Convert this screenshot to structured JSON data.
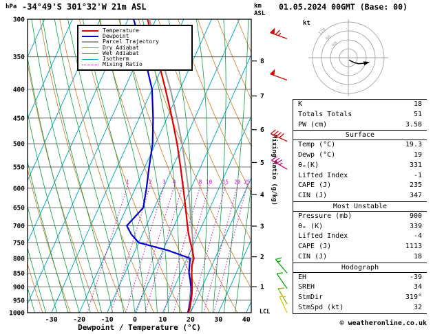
{
  "header": {
    "pressure_unit": "hPa",
    "title": "-34°49'S 301°32'W 21m ASL",
    "datetime": "01.05.2024 00GMT (Base: 00)"
  },
  "axis_labels": {
    "x": "Dewpoint / Temperature (°C)",
    "km_top": "km",
    "km_bottom": "ASL",
    "mixing_ratio": "Mixing Ratio (g/kg)",
    "lcl": "LCL",
    "hodograph_unit": "kt"
  },
  "legend": [
    {
      "label": "Temperature",
      "color": "#dd0000",
      "width": 2,
      "style": "solid"
    },
    {
      "label": "Dewpoint",
      "color": "#0000cc",
      "width": 2,
      "style": "solid"
    },
    {
      "label": "Parcel Trajectory",
      "color": "#999999",
      "width": 2,
      "style": "solid"
    },
    {
      "label": "Dry Adiabat",
      "color": "#d07820",
      "width": 1,
      "style": "solid"
    },
    {
      "label": "Wet Adiabat",
      "color": "#00a040",
      "width": 1,
      "style": "solid"
    },
    {
      "label": "Isotherm",
      "color": "#00b0c8",
      "width": 1,
      "style": "solid"
    },
    {
      "label": "Mixing Ratio",
      "color": "#cc00cc",
      "width": 1,
      "style": "dotted"
    }
  ],
  "chart_data": {
    "type": "skewt_log_p_sounding",
    "x_range_c": [
      -30,
      40
    ],
    "x_ticks_c": [
      -30,
      -20,
      -10,
      0,
      10,
      20,
      30,
      40
    ],
    "pressure_range_hpa": [
      300,
      1000
    ],
    "pressure_ticks_hpa": [
      300,
      350,
      400,
      450,
      500,
      550,
      600,
      650,
      700,
      750,
      800,
      850,
      900,
      950,
      1000
    ],
    "km_ticks": [
      {
        "km": 1,
        "p": 899
      },
      {
        "km": 2,
        "p": 795
      },
      {
        "km": 3,
        "p": 701
      },
      {
        "km": 4,
        "p": 616
      },
      {
        "km": 5,
        "p": 540
      },
      {
        "km": 6,
        "p": 472
      },
      {
        "km": 7,
        "p": 411
      },
      {
        "km": 8,
        "p": 356
      }
    ],
    "lcl_pressure_hpa": 995,
    "isotherm_step_c": 10,
    "dry_adiabat_step_k": 10,
    "wet_adiabat_step_c": 4,
    "mixing_ratio_lines_g_kg": [
      1,
      2,
      3,
      4,
      5,
      8,
      10,
      15,
      20,
      25
    ],
    "levels_hpa": [
      1000,
      975,
      950,
      925,
      900,
      875,
      850,
      825,
      800,
      775,
      750,
      725,
      700,
      650,
      600,
      550,
      500,
      450,
      400,
      350,
      300
    ],
    "temperature_c": [
      19.3,
      18.8,
      18.2,
      17.4,
      16.4,
      15.2,
      14.0,
      12.8,
      12.4,
      10.6,
      8.6,
      6.6,
      4.8,
      1.2,
      -2.8,
      -7.2,
      -12.2,
      -18.2,
      -25.2,
      -33.4,
      -43.0
    ],
    "dewpoint_c": [
      19.0,
      18.6,
      18.0,
      17.2,
      16.0,
      14.6,
      13.0,
      12.0,
      11.0,
      2.0,
      -10.0,
      -14.0,
      -17.0,
      -14.0,
      -16.0,
      -18.5,
      -21.0,
      -25.0,
      -30.0,
      -38.0,
      -48.0
    ],
    "parcel_c": [
      19.3,
      18.4,
      17.6,
      16.8,
      16.0,
      15.0,
      14.0,
      13.0,
      12.0,
      10.8,
      9.5,
      7.9,
      6.2,
      2.8,
      -1.0,
      -5.4,
      -10.4,
      -16.4,
      -23.4,
      -32.0,
      -42.4
    ],
    "wind_barbs": [
      {
        "p": 325,
        "speed_kt": 65,
        "dir_deg": 290,
        "color": "#dd0000"
      },
      {
        "p": 385,
        "speed_kt": 50,
        "dir_deg": 290,
        "color": "#dd0000"
      },
      {
        "p": 495,
        "speed_kt": 40,
        "dir_deg": 295,
        "color": "#dd0000"
      },
      {
        "p": 555,
        "speed_kt": 35,
        "dir_deg": 300,
        "color": "#cc0077"
      },
      {
        "p": 850,
        "speed_kt": 15,
        "dir_deg": 320,
        "color": "#00aa00"
      },
      {
        "p": 905,
        "speed_kt": 12,
        "dir_deg": 325,
        "color": "#00aa00"
      },
      {
        "p": 965,
        "speed_kt": 10,
        "dir_deg": 330,
        "color": "#88bb00"
      },
      {
        "p": 1000,
        "speed_kt": 8,
        "dir_deg": 335,
        "color": "#ddcc00"
      }
    ]
  },
  "hodograph": {
    "unit": "kt",
    "rings_kt": [
      30,
      60,
      90,
      120
    ],
    "ring_labels": [
      "60",
      "90",
      "120"
    ],
    "trace_uv_kt": [
      [
        2.7,
        -7.5
      ],
      [
        9.6,
        -11.5
      ],
      [
        19.1,
        -16.1
      ],
      [
        34.6,
        -20.0
      ],
      [
        51.7,
        -18.8
      ],
      [
        61.0,
        -17.0
      ]
    ]
  },
  "table": {
    "sections": [
      {
        "header": null,
        "rows": [
          [
            "K",
            "18"
          ],
          [
            "Totals Totals",
            "51"
          ],
          [
            "PW (cm)",
            "3.58"
          ]
        ]
      },
      {
        "header": "Surface",
        "rows": [
          [
            "Temp (°C)",
            "19.3"
          ],
          [
            "Dewp (°C)",
            "19"
          ],
          [
            "θₑ(K)",
            "331"
          ],
          [
            "Lifted Index",
            "-1"
          ],
          [
            "CAPE (J)",
            "235"
          ],
          [
            "CIN (J)",
            "347"
          ]
        ]
      },
      {
        "header": "Most Unstable",
        "rows": [
          [
            "Pressure (mb)",
            "900"
          ],
          [
            "θₑ (K)",
            "339"
          ],
          [
            "Lifted Index",
            "-4"
          ],
          [
            "CAPE (J)",
            "1113"
          ],
          [
            "CIN (J)",
            "18"
          ]
        ]
      },
      {
        "header": "Hodograph",
        "rows": [
          [
            "EH",
            "-39"
          ],
          [
            "SREH",
            "34"
          ],
          [
            "StmDir",
            "319°"
          ],
          [
            "StmSpd (kt)",
            "32"
          ]
        ]
      }
    ]
  },
  "colors": {
    "temperature": "#dd0000",
    "dewpoint": "#0000cc",
    "parcel": "#999999",
    "dry_adiabat": "#d07820",
    "wet_adiabat": "#00a040",
    "isotherm": "#00b0c8",
    "mixing_ratio": "#cc00cc",
    "isobar": "#444444",
    "frame": "#000000"
  },
  "footer": {
    "copyright": "© weatheronline.co.uk"
  }
}
